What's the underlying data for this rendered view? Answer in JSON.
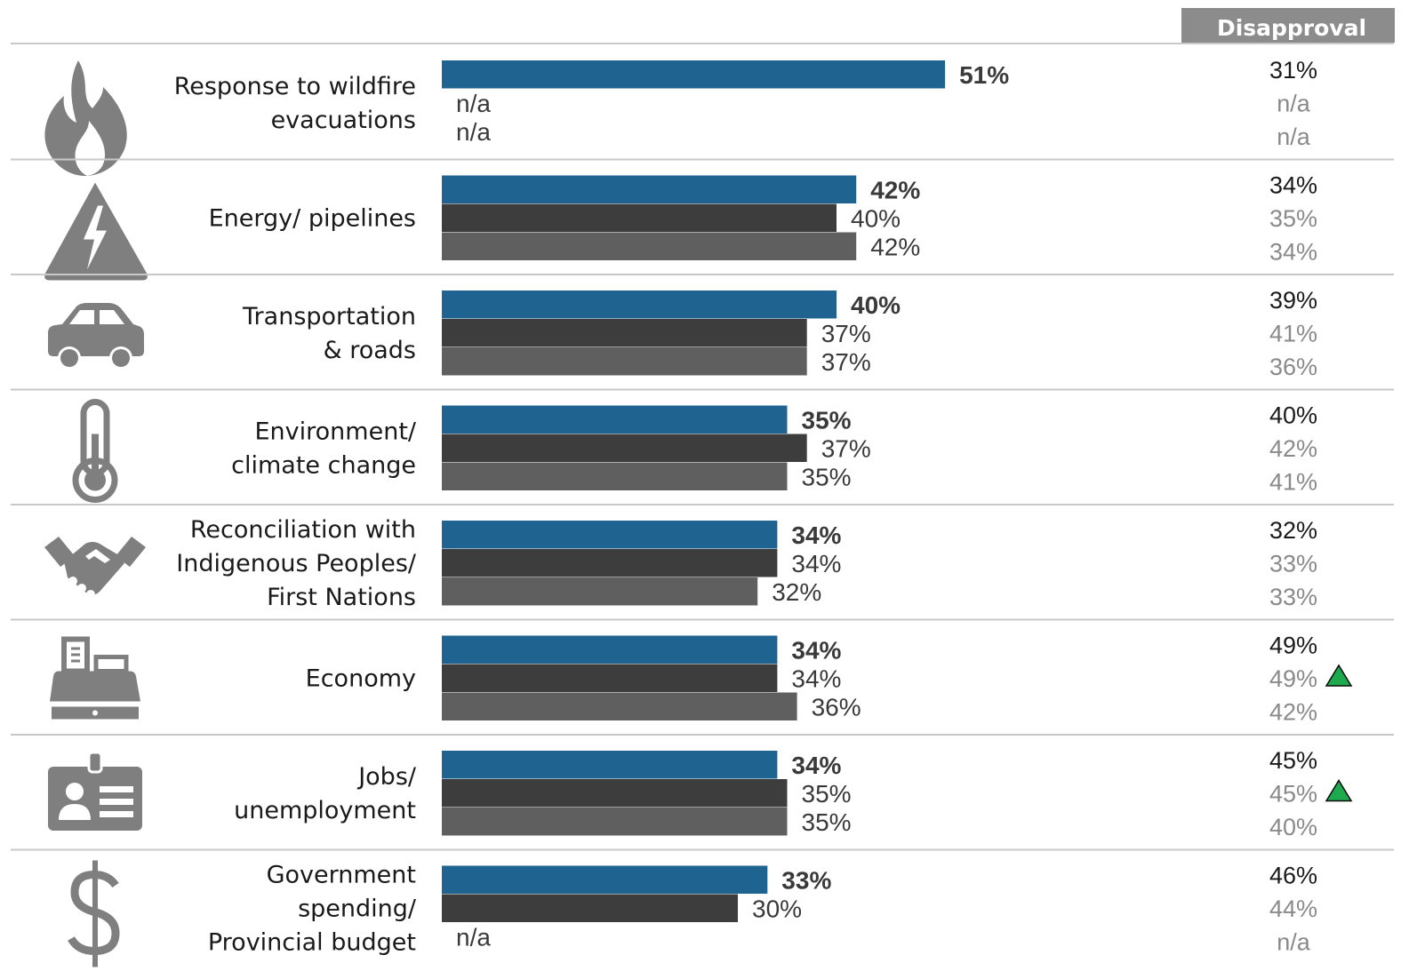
{
  "colors": {
    "series_current": "#1f6391",
    "series_prev1": "#3d3d3d",
    "series_prev2": "#5f5f5f",
    "header_bg": "#8c8c8c",
    "divider": "#c8c8c8",
    "icon": "#7f7f7f",
    "up_arrow": "#1daa4f"
  },
  "header": {
    "disapproval_label": "Disapproval"
  },
  "chart_data": {
    "type": "bar",
    "orientation": "horizontal",
    "series_count": 3,
    "xlim": [
      0,
      100
    ],
    "rows": [
      {
        "icon": "fire-icon",
        "label_lines": [
          "Response to wildfire",
          "evacuations"
        ],
        "values": [
          51,
          null,
          null
        ],
        "labels": [
          "51%",
          "n/a",
          "n/a"
        ],
        "disapproval": [
          "31%",
          "n/a",
          "n/a"
        ],
        "up_arrow": false
      },
      {
        "icon": "high-voltage-icon",
        "label_lines": [
          "Energy/ pipelines"
        ],
        "values": [
          42,
          40,
          42
        ],
        "labels": [
          "42%",
          "40%",
          "42%"
        ],
        "disapproval": [
          "34%",
          "35%",
          "34%"
        ],
        "up_arrow": false
      },
      {
        "icon": "car-icon",
        "label_lines": [
          "Transportation",
          "& roads"
        ],
        "values": [
          40,
          37,
          37
        ],
        "labels": [
          "40%",
          "37%",
          "37%"
        ],
        "disapproval": [
          "39%",
          "41%",
          "36%"
        ],
        "up_arrow": false
      },
      {
        "icon": "thermometer-icon",
        "label_lines": [
          "Environment/",
          "climate change"
        ],
        "values": [
          35,
          37,
          35
        ],
        "labels": [
          "35%",
          "37%",
          "35%"
        ],
        "disapproval": [
          "40%",
          "42%",
          "41%"
        ],
        "up_arrow": false
      },
      {
        "icon": "handshake-icon",
        "label_lines": [
          "Reconciliation with",
          "Indigenous Peoples/",
          "First Nations"
        ],
        "values": [
          34,
          34,
          32
        ],
        "labels": [
          "34%",
          "34%",
          "32%"
        ],
        "disapproval": [
          "32%",
          "33%",
          "33%"
        ],
        "up_arrow": false
      },
      {
        "icon": "cash-register-icon",
        "label_lines": [
          "Economy"
        ],
        "values": [
          34,
          34,
          36
        ],
        "labels": [
          "34%",
          "34%",
          "36%"
        ],
        "disapproval": [
          "49%",
          "49%",
          "42%"
        ],
        "up_arrow": true
      },
      {
        "icon": "id-badge-icon",
        "label_lines": [
          "Jobs/",
          "unemployment"
        ],
        "values": [
          34,
          35,
          35
        ],
        "labels": [
          "34%",
          "35%",
          "35%"
        ],
        "disapproval": [
          "45%",
          "45%",
          "40%"
        ],
        "up_arrow": true
      },
      {
        "icon": "dollar-sign-icon",
        "label_lines": [
          "Government",
          "spending/",
          "Provincial budget"
        ],
        "values": [
          33,
          30,
          null
        ],
        "labels": [
          "33%",
          "30%",
          "n/a"
        ],
        "disapproval": [
          "46%",
          "44%",
          "n/a"
        ],
        "up_arrow": false
      }
    ]
  }
}
